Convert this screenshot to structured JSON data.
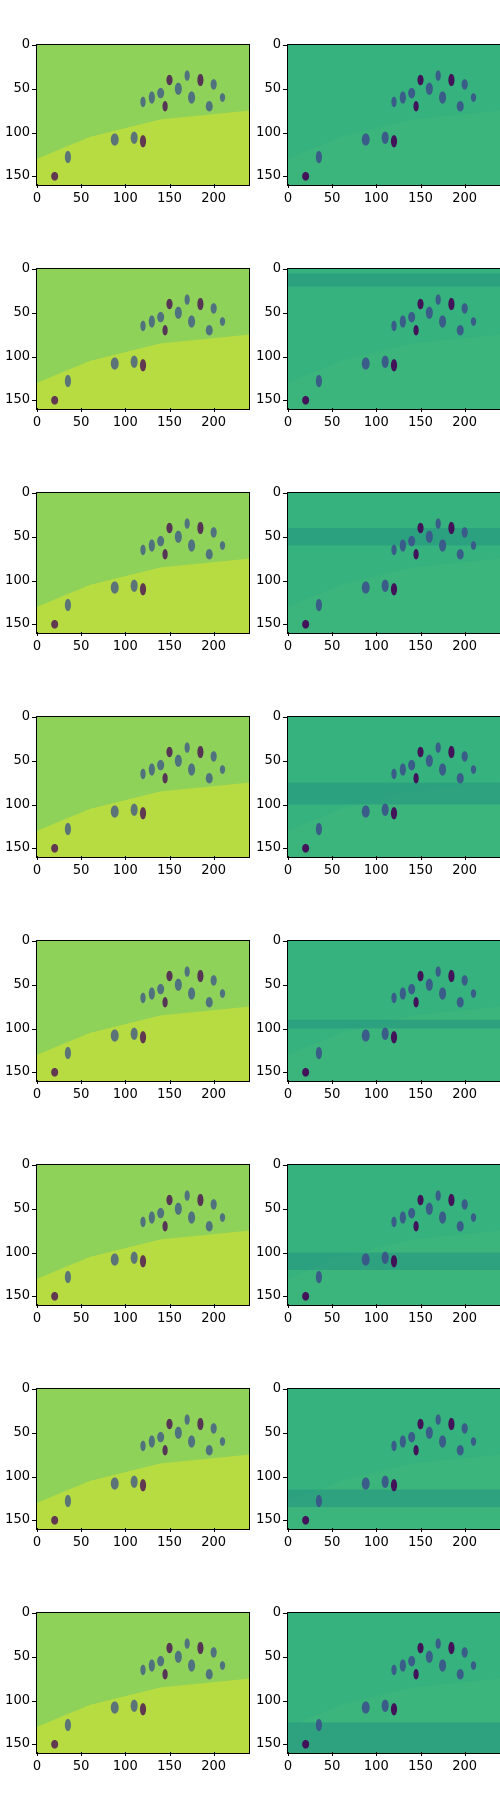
{
  "figure": {
    "rows": 8,
    "columns": 2,
    "panel_left_desc": "blurred reconstruction",
    "panel_right_desc": "original frame with band"
  },
  "axes": {
    "x_ticks": [
      "0",
      "50",
      "100",
      "150",
      "200"
    ],
    "y_ticks": [
      "0",
      "50",
      "100",
      "150"
    ],
    "x_range": [
      0,
      240
    ],
    "y_range": [
      0,
      160
    ]
  },
  "colormap": "viridis",
  "colors": {
    "left_bg": "#8fd25a",
    "left_bright": "#c4df3a",
    "right_bg": "#35b27d",
    "right_dark": "#2a9a82",
    "people": "#3b528b",
    "people_dark": "#440154"
  },
  "rows": [
    {
      "id": 1,
      "band_right": null
    },
    {
      "id": 2,
      "band_right": [
        5,
        20
      ]
    },
    {
      "id": 3,
      "band_right": [
        40,
        60
      ]
    },
    {
      "id": 4,
      "band_right": [
        75,
        100
      ]
    },
    {
      "id": 5,
      "band_right": [
        90,
        100
      ]
    },
    {
      "id": 6,
      "band_right": [
        100,
        120
      ]
    },
    {
      "id": 7,
      "band_right": [
        115,
        135
      ]
    },
    {
      "id": 8,
      "band_right": [
        125,
        160
      ]
    }
  ]
}
